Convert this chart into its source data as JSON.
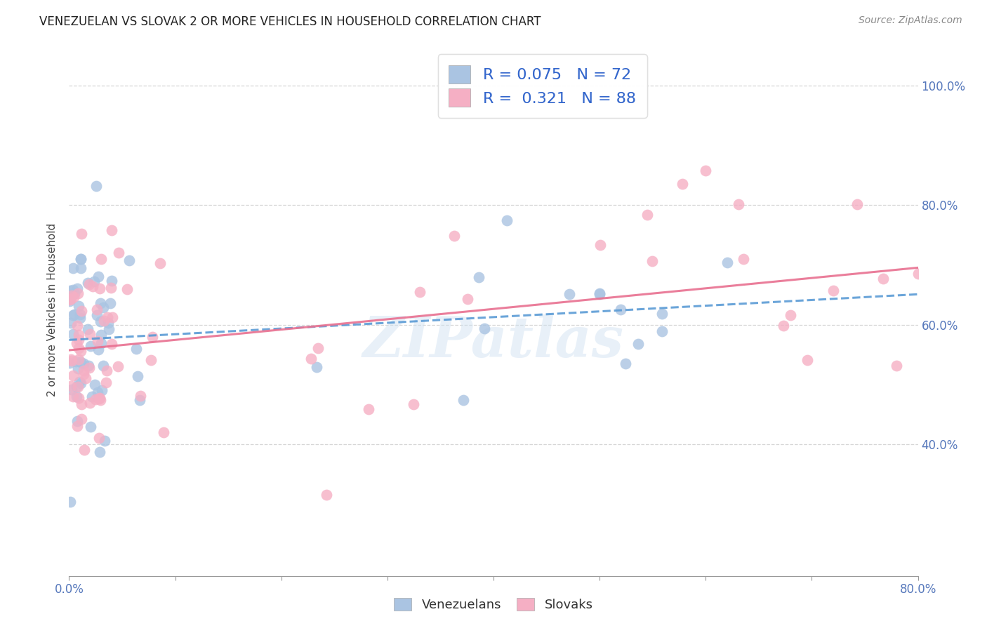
{
  "title": "VENEZUELAN VS SLOVAK 2 OR MORE VEHICLES IN HOUSEHOLD CORRELATION CHART",
  "source": "Source: ZipAtlas.com",
  "ylabel": "2 or more Vehicles in Household",
  "xmin": 0.0,
  "xmax": 0.8,
  "ymin": 0.18,
  "ymax": 1.07,
  "xtick_labels": [
    "0.0%",
    "",
    "",
    "",
    "",
    "",
    "",
    "",
    "80.0%"
  ],
  "xtick_values": [
    0.0,
    0.1,
    0.2,
    0.3,
    0.4,
    0.5,
    0.6,
    0.7,
    0.8
  ],
  "ytick_labels": [
    "40.0%",
    "60.0%",
    "80.0%",
    "100.0%"
  ],
  "ytick_values": [
    0.4,
    0.6,
    0.8,
    1.0
  ],
  "venezuelan_color": "#aac4e2",
  "slovak_color": "#f5afc4",
  "ven_line_color": "#5b9bd5",
  "slo_line_color": "#e87090",
  "venezuelan_R": 0.075,
  "venezuelan_N": 72,
  "slovak_R": 0.321,
  "slovak_N": 88,
  "legend_label_venezuelan": "Venezuelans",
  "legend_label_slovak": "Slovaks",
  "watermark": "ZIPatlas",
  "title_fontsize": 12,
  "tick_fontsize": 12,
  "ylabel_fontsize": 11
}
